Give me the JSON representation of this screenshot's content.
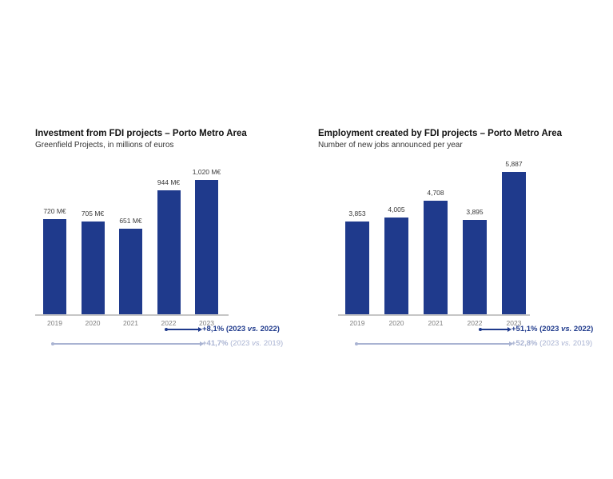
{
  "page": {
    "background": "#ffffff"
  },
  "colors": {
    "bar": "#1F3A8C",
    "annotation_dark": "#1F3A8C",
    "annotation_light": "#A9B3D2",
    "axis_line": "#C6C6C6",
    "year_label": "#7F7F7F",
    "value_label": "#3B3B3B"
  },
  "chart_data": [
    {
      "type": "bar",
      "title": "Investment from FDI projects – Porto Metro Area",
      "subtitle": "Greenfield Projects, in millions of euros",
      "categories": [
        "2019",
        "2020",
        "2021",
        "2022",
        "2023"
      ],
      "values": [
        720,
        705,
        651,
        944,
        1020
      ],
      "value_labels": [
        "720 M€",
        "705 M€",
        "651 M€",
        "944 M€",
        "1,020 M€"
      ],
      "xlabel": "",
      "ylabel": "",
      "ylim": [
        0,
        1020
      ],
      "grid": false,
      "legend": "none",
      "bar_color": "#1F3A8C",
      "annotations": [
        {
          "percent": "+8,1%",
          "comparison": "(2023 vs. 2022)",
          "style": "dark",
          "color": "#1F3A8C"
        },
        {
          "percent": "+41,7%",
          "comparison": "(2023 vs. 2019)",
          "style": "light",
          "color": "#A9B3D2"
        }
      ]
    },
    {
      "type": "bar",
      "title": "Employment created by FDI projects – Porto Metro Area",
      "subtitle": "Number of new jobs announced per year",
      "categories": [
        "2019",
        "2020",
        "2021",
        "2022",
        "2023"
      ],
      "values": [
        3853,
        4005,
        4708,
        3895,
        5887
      ],
      "value_labels": [
        "3,853",
        "4,005",
        "4,708",
        "3,895",
        "5,887"
      ],
      "xlabel": "",
      "ylabel": "",
      "ylim": [
        0,
        5887
      ],
      "grid": false,
      "legend": "none",
      "bar_color": "#1F3A8C",
      "annotations": [
        {
          "percent": "+51,1%",
          "comparison": "(2023 vs. 2022)",
          "style": "dark",
          "color": "#1F3A8C"
        },
        {
          "percent": "+52,8%",
          "comparison": "(2023 vs. 2019)",
          "style": "light",
          "color": "#A9B3D2"
        }
      ]
    }
  ]
}
